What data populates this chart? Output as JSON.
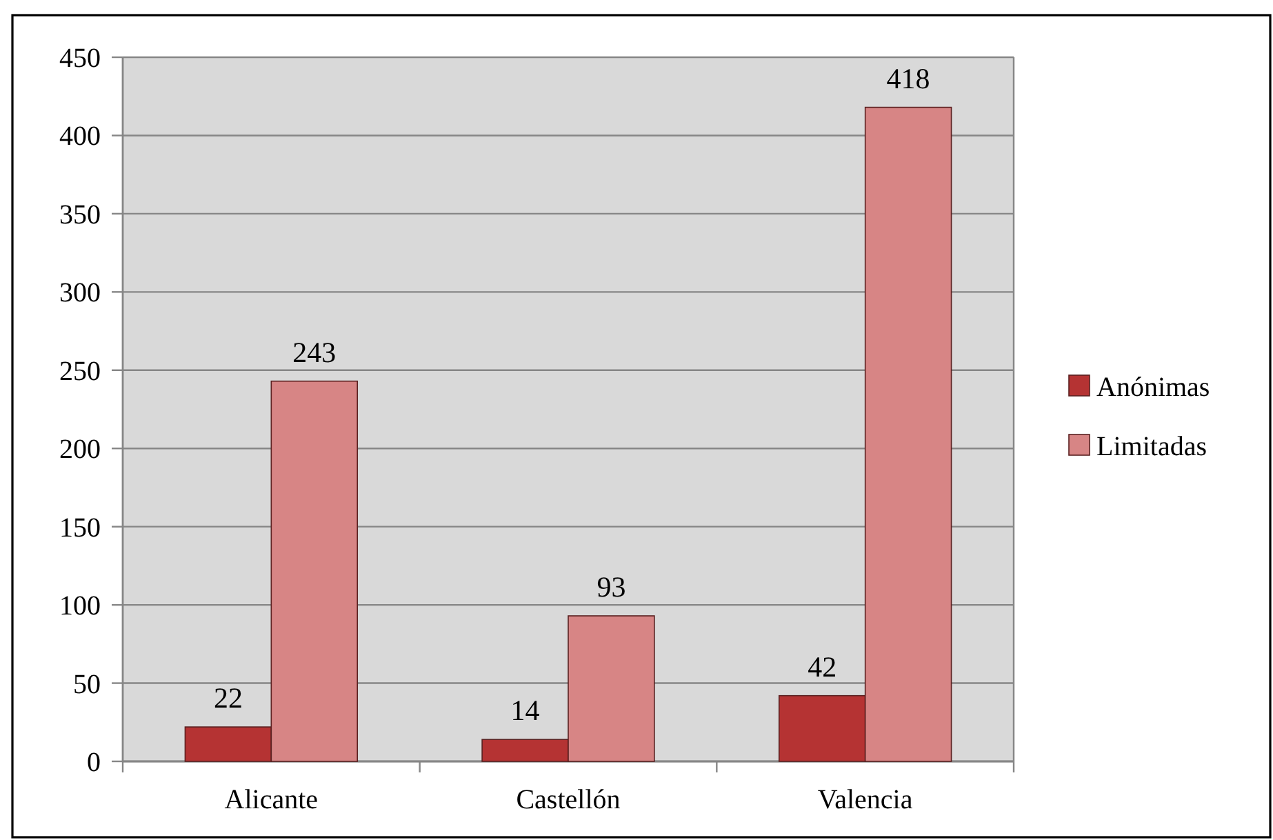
{
  "chart_data": {
    "type": "bar",
    "categories": [
      "Alicante",
      "Castellón",
      "Valencia"
    ],
    "series": [
      {
        "name": "Anónimas",
        "color": "#b53333",
        "values": [
          22,
          14,
          42
        ]
      },
      {
        "name": "Limitadas",
        "color": "#d78585",
        "values": [
          243,
          93,
          418
        ]
      }
    ],
    "ylim": [
      0,
      450
    ],
    "yticks": [
      0,
      50,
      100,
      150,
      200,
      250,
      300,
      350,
      400,
      450
    ],
    "grid": "y",
    "legend": "right",
    "data_labels": true
  }
}
